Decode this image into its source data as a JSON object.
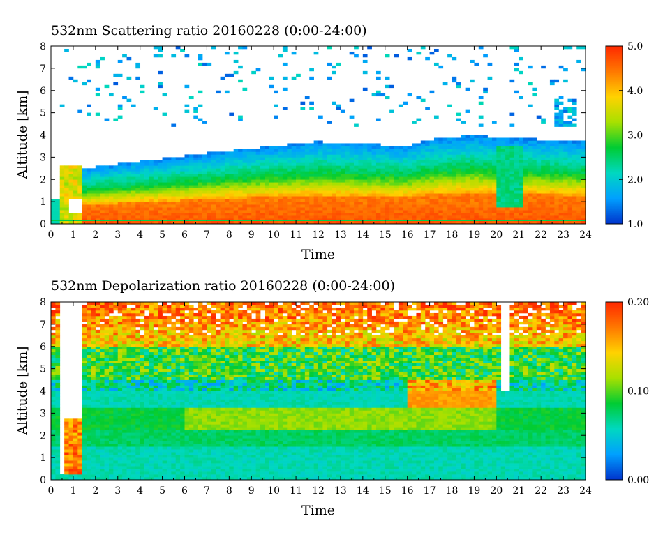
{
  "chart_data": [
    {
      "type": "heatmap",
      "title": "532nm Scattering ratio  20160228 (0:00-24:00)",
      "xlabel": "Time",
      "ylabel": "Altitude [km]",
      "xlim": [
        0,
        24
      ],
      "ylim": [
        0,
        8
      ],
      "x_ticks": [
        "0",
        "1",
        "2",
        "3",
        "4",
        "5",
        "6",
        "7",
        "8",
        "9",
        "10",
        "11",
        "12",
        "13",
        "14",
        "15",
        "16",
        "17",
        "18",
        "19",
        "20",
        "21",
        "22",
        "23",
        "24"
      ],
      "y_ticks": [
        "0",
        "1",
        "2",
        "3",
        "4",
        "5",
        "6",
        "7",
        "8"
      ],
      "colorbar": {
        "range": [
          1.0,
          5.0
        ],
        "ticks": [
          "1.0",
          "2.0",
          "3.0",
          "4.0",
          "5.0"
        ],
        "colormap": "rainbow",
        "colors": [
          "#0033cc",
          "#00a0ff",
          "#00d8c0",
          "#00cc33",
          "#a8e000",
          "#ffd200",
          "#ff7800",
          "#ff2800"
        ]
      },
      "features": [
        {
          "description": "aerosol layer top",
          "time_hours": [
            1.5,
            8,
            12,
            16,
            19,
            24
          ],
          "altitude_km": [
            2.5,
            3.3,
            3.7,
            3.5,
            4.0,
            3.7
          ]
        },
        {
          "description": "high values near surface",
          "altitude_km": [
            0,
            1.5
          ],
          "value_range": [
            4.0,
            5.0
          ]
        },
        {
          "description": "sparse cloud/noise above layer",
          "altitude_km": [
            4.5,
            8
          ],
          "value_range": [
            1.0,
            2.0
          ]
        }
      ]
    },
    {
      "type": "heatmap",
      "title": "532nm Depolarization ratio  20160228 (0:00-24:00)",
      "xlabel": "Time",
      "ylabel": "Altitude [km]",
      "xlim": [
        0,
        24
      ],
      "ylim": [
        0,
        8
      ],
      "x_ticks": [
        "0",
        "1",
        "2",
        "3",
        "4",
        "5",
        "6",
        "7",
        "8",
        "9",
        "10",
        "11",
        "12",
        "13",
        "14",
        "15",
        "16",
        "17",
        "18",
        "19",
        "20",
        "21",
        "22",
        "23",
        "24"
      ],
      "y_ticks": [
        "0",
        "1",
        "2",
        "3",
        "4",
        "5",
        "6",
        "7",
        "8"
      ],
      "colorbar": {
        "range": [
          0.0,
          0.2
        ],
        "ticks": [
          "0.00",
          "0.10",
          "0.20"
        ],
        "colormap": "rainbow",
        "colors": [
          "#0033cc",
          "#00a0ff",
          "#00d8c0",
          "#00cc33",
          "#a8e000",
          "#ffd200",
          "#ff7800",
          "#ff2800"
        ]
      },
      "features": [
        {
          "description": "low depolarization near surface",
          "altitude_km": [
            0,
            1.5
          ],
          "value_range": [
            0.04,
            0.07
          ]
        },
        {
          "description": "elevated dust layer",
          "time_hours": [
            6,
            20
          ],
          "altitude_km": [
            2.2,
            3.2
          ],
          "value_range": [
            0.1,
            0.13
          ]
        },
        {
          "description": "high noisy values aloft",
          "altitude_km": [
            6,
            8
          ],
          "value_range": [
            0.15,
            0.2
          ]
        }
      ]
    }
  ]
}
